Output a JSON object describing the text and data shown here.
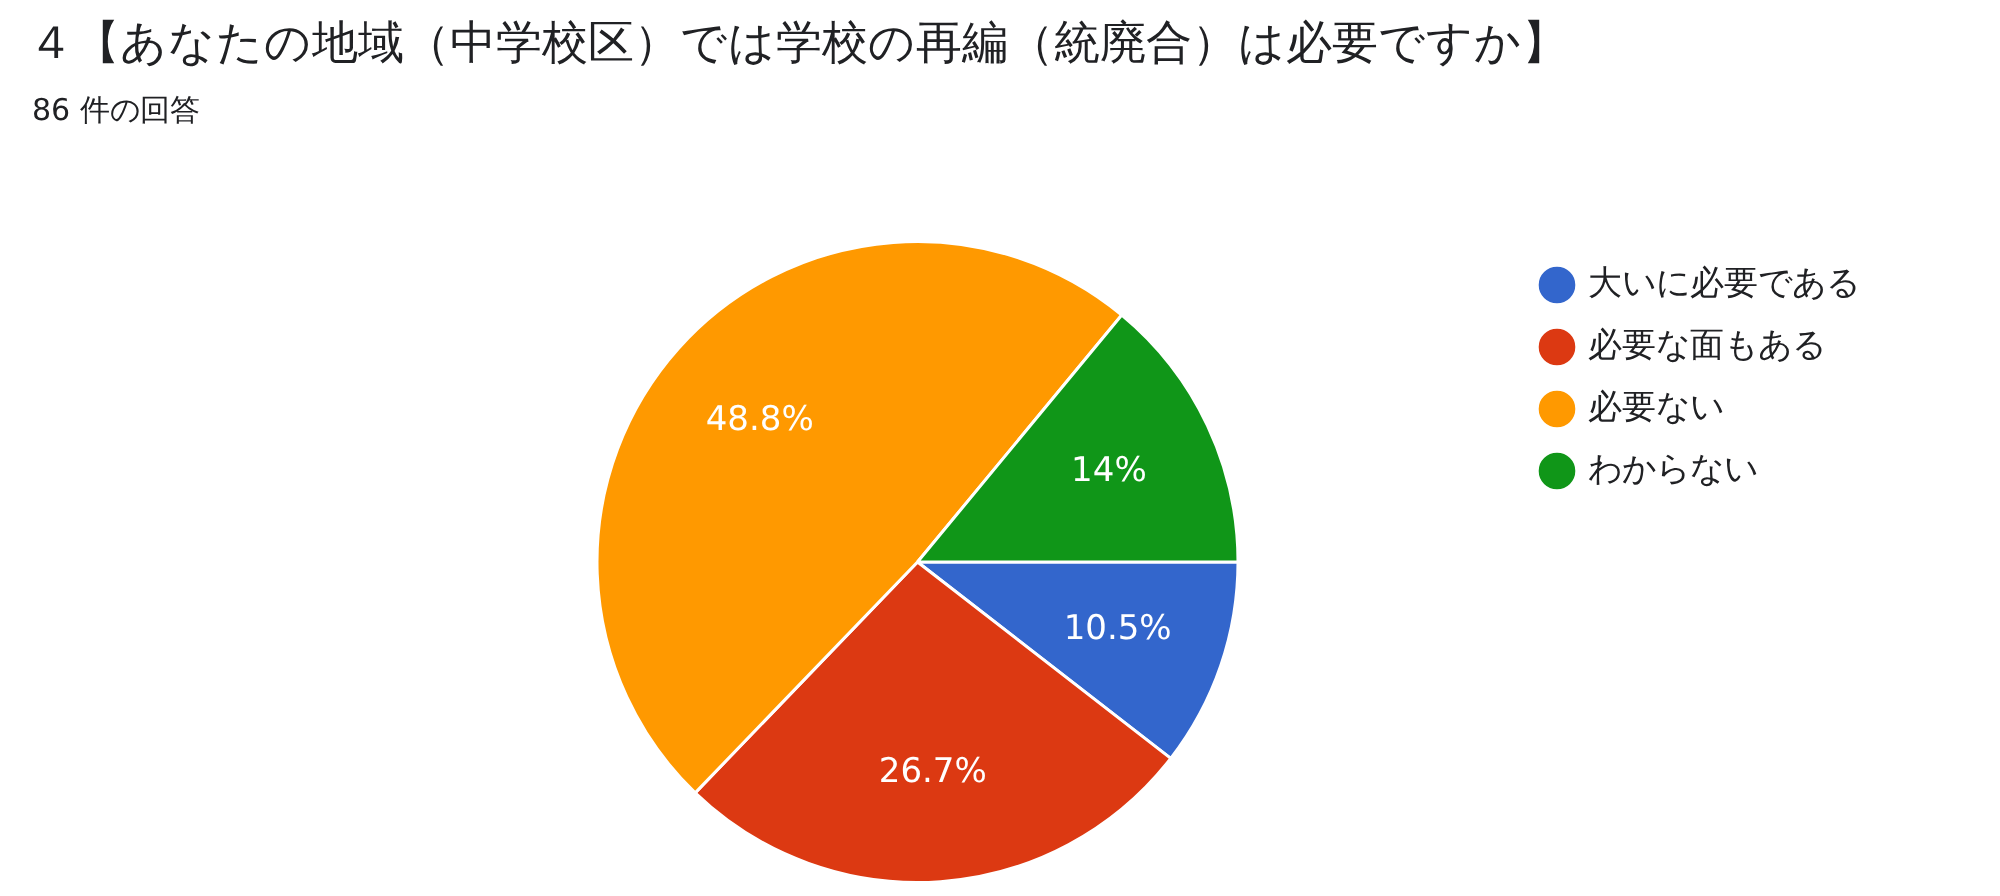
{
  "chart_data": {
    "type": "pie",
    "title": "４【あなたの地域（中学校区）では学校の再編（統廃合）は必要ですか】",
    "subtitle": "86 件の回答",
    "categories": [
      "大いに必要である",
      "必要な面もある",
      "必要ない",
      "わからない"
    ],
    "values": [
      10.5,
      26.7,
      48.8,
      14
    ],
    "colors": [
      "#3366cc",
      "#dc3912",
      "#ff9900",
      "#109618"
    ],
    "value_labels": [
      "10.5%",
      "26.7%",
      "48.8%",
      "14%"
    ],
    "legend": "right"
  }
}
